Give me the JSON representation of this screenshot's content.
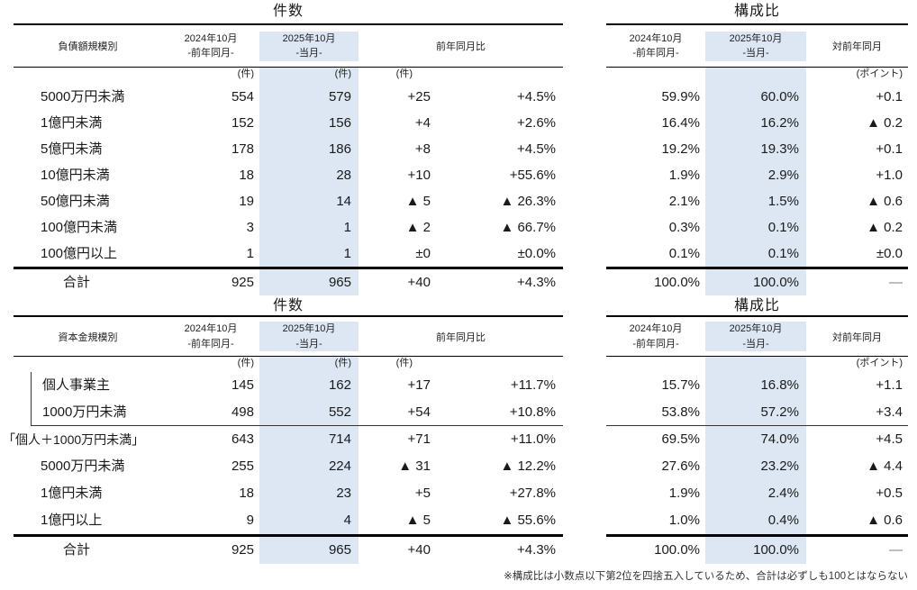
{
  "colors": {
    "highlight": "#dce7f3",
    "rule_line": "#000000",
    "muted_dash": "#7f7f7f"
  },
  "note": "※構成比は小数点以下第2位を四捨五入しているため、合計は必ずしも100とはならない",
  "tables": [
    {
      "kind": "count",
      "title": "件数",
      "category_label": "負債額規模別",
      "columns": {
        "prev_line1": "2024年10月",
        "prev_line2": "-前年同月-",
        "curr_line1": "2025年10月",
        "curr_line2": "-当月-",
        "change": "前年同月比"
      },
      "unit_prev": "(件)",
      "unit_curr": "(件)",
      "unit_diff": "(件)",
      "rows": [
        {
          "label": "5000万円未満",
          "prev": "554",
          "curr": "579",
          "diff": "+25",
          "pct": "+4.5%"
        },
        {
          "label": "1億円未満",
          "prev": "152",
          "curr": "156",
          "diff": "+4",
          "pct": "+2.6%"
        },
        {
          "label": "5億円未満",
          "prev": "178",
          "curr": "186",
          "diff": "+8",
          "pct": "+4.5%"
        },
        {
          "label": "10億円未満",
          "prev": "18",
          "curr": "28",
          "diff": "+10",
          "pct": "+55.6%"
        },
        {
          "label": "50億円未満",
          "prev": "19",
          "curr": "14",
          "diff": "▲ 5",
          "pct": "▲ 26.3%"
        },
        {
          "label": "100億円未満",
          "prev": "3",
          "curr": "1",
          "diff": "▲ 2",
          "pct": "▲ 66.7%"
        },
        {
          "label": "100億円以上",
          "prev": "1",
          "curr": "1",
          "diff": "±0",
          "pct": "±0.0%"
        }
      ],
      "total": {
        "label": "合計",
        "prev": "925",
        "curr": "965",
        "diff": "+40",
        "pct": "+4.3%"
      }
    },
    {
      "kind": "ratio",
      "title": "構成比",
      "columns": {
        "prev_line1": "2024年10月",
        "prev_line2": "-前年同月-",
        "curr_line1": "2025年10月",
        "curr_line2": "-当月-",
        "change": "対前年同月"
      },
      "unit_diff": "(ポイント)",
      "rows": [
        {
          "prev": "59.9%",
          "curr": "60.0%",
          "diff": "+0.1"
        },
        {
          "prev": "16.4%",
          "curr": "16.2%",
          "diff": "▲ 0.2"
        },
        {
          "prev": "19.2%",
          "curr": "19.3%",
          "diff": "+0.1"
        },
        {
          "prev": "1.9%",
          "curr": "2.9%",
          "diff": "+1.0"
        },
        {
          "prev": "2.1%",
          "curr": "1.5%",
          "diff": "▲ 0.6"
        },
        {
          "prev": "0.3%",
          "curr": "0.1%",
          "diff": "▲ 0.2"
        },
        {
          "prev": "0.1%",
          "curr": "0.1%",
          "diff": "±0.0"
        }
      ],
      "total": {
        "prev": "100.0%",
        "curr": "100.0%",
        "diff": "—"
      }
    },
    {
      "kind": "count",
      "title": "件数",
      "category_label": "資本金規模別",
      "columns": {
        "prev_line1": "2024年10月",
        "prev_line2": "-前年同月-",
        "curr_line1": "2025年10月",
        "curr_line2": "-当月-",
        "change": "前年同月比"
      },
      "unit_prev": "(件)",
      "unit_curr": "(件)",
      "unit_diff": "(件)",
      "bracket_rows": [
        0,
        1
      ],
      "sep_after_row": 1,
      "outdent_row": 2,
      "rows": [
        {
          "label": "個人事業主",
          "prev": "145",
          "curr": "162",
          "diff": "+17",
          "pct": "+11.7%"
        },
        {
          "label": "1000万円未満",
          "prev": "498",
          "curr": "552",
          "diff": "+54",
          "pct": "+10.8%"
        },
        {
          "label": "「個人＋1000万円未満」",
          "prev": "643",
          "curr": "714",
          "diff": "+71",
          "pct": "+11.0%"
        },
        {
          "label": "5000万円未満",
          "prev": "255",
          "curr": "224",
          "diff": "▲ 31",
          "pct": "▲ 12.2%"
        },
        {
          "label": "1億円未満",
          "prev": "18",
          "curr": "23",
          "diff": "+5",
          "pct": "+27.8%"
        },
        {
          "label": "1億円以上",
          "prev": "9",
          "curr": "4",
          "diff": "▲ 5",
          "pct": "▲ 55.6%"
        }
      ],
      "total": {
        "label": "合計",
        "prev": "925",
        "curr": "965",
        "diff": "+40",
        "pct": "+4.3%"
      }
    },
    {
      "kind": "ratio",
      "title": "構成比",
      "columns": {
        "prev_line1": "2024年10月",
        "prev_line2": "-前年同月-",
        "curr_line1": "2025年10月",
        "curr_line2": "-当月-",
        "change": "対前年同月"
      },
      "unit_diff": "(ポイント)",
      "sep_after_row": 1,
      "rows": [
        {
          "prev": "15.7%",
          "curr": "16.8%",
          "diff": "+1.1"
        },
        {
          "prev": "53.8%",
          "curr": "57.2%",
          "diff": "+3.4"
        },
        {
          "prev": "69.5%",
          "curr": "74.0%",
          "diff": "+4.5"
        },
        {
          "prev": "27.6%",
          "curr": "23.2%",
          "diff": "▲ 4.4"
        },
        {
          "prev": "1.9%",
          "curr": "2.4%",
          "diff": "+0.5"
        },
        {
          "prev": "1.0%",
          "curr": "0.4%",
          "diff": "▲ 0.6"
        }
      ],
      "total": {
        "prev": "100.0%",
        "curr": "100.0%",
        "diff": "—"
      }
    }
  ]
}
